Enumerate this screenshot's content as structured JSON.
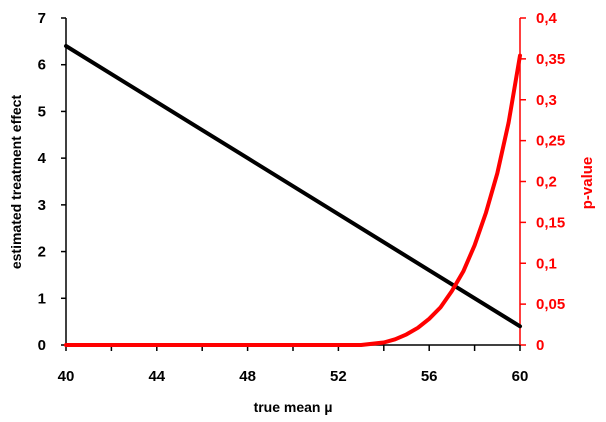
{
  "chart_data": {
    "type": "line",
    "title": "",
    "xlabel": "true mean µ",
    "ylabel": "estimated treatment effect",
    "y2label": "p-value",
    "xlim": [
      40,
      60
    ],
    "ylim": [
      0,
      7
    ],
    "y2lim": [
      0,
      0.4
    ],
    "x_ticks": [
      "40",
      "44",
      "48",
      "52",
      "56",
      "60"
    ],
    "y_ticks": [
      "0",
      "1",
      "2",
      "3",
      "4",
      "5",
      "6",
      "7"
    ],
    "y2_ticks": [
      "0",
      "0,05",
      "0,1",
      "0,15",
      "0,2",
      "0,25",
      "0,3",
      "0,35",
      "0,4"
    ],
    "grid": false,
    "legend": "none",
    "colors": {
      "effect": "#000000",
      "pvalue": "#ff0000"
    },
    "series": [
      {
        "axis": "left",
        "x": [
          40,
          44,
          48,
          52,
          56,
          60
        ],
        "values": [
          6.4,
          5.2,
          4.0,
          2.8,
          1.6,
          0.4
        ]
      },
      {
        "axis": "right",
        "x": [
          40,
          53,
          54,
          54.5,
          55,
          55.5,
          56,
          56.5,
          57,
          57.5,
          58,
          58.5,
          59,
          59.5,
          60
        ],
        "values": [
          0,
          0,
          0.003,
          0.007,
          0.013,
          0.021,
          0.032,
          0.046,
          0.066,
          0.09,
          0.122,
          0.162,
          0.21,
          0.272,
          0.354
        ]
      }
    ]
  }
}
